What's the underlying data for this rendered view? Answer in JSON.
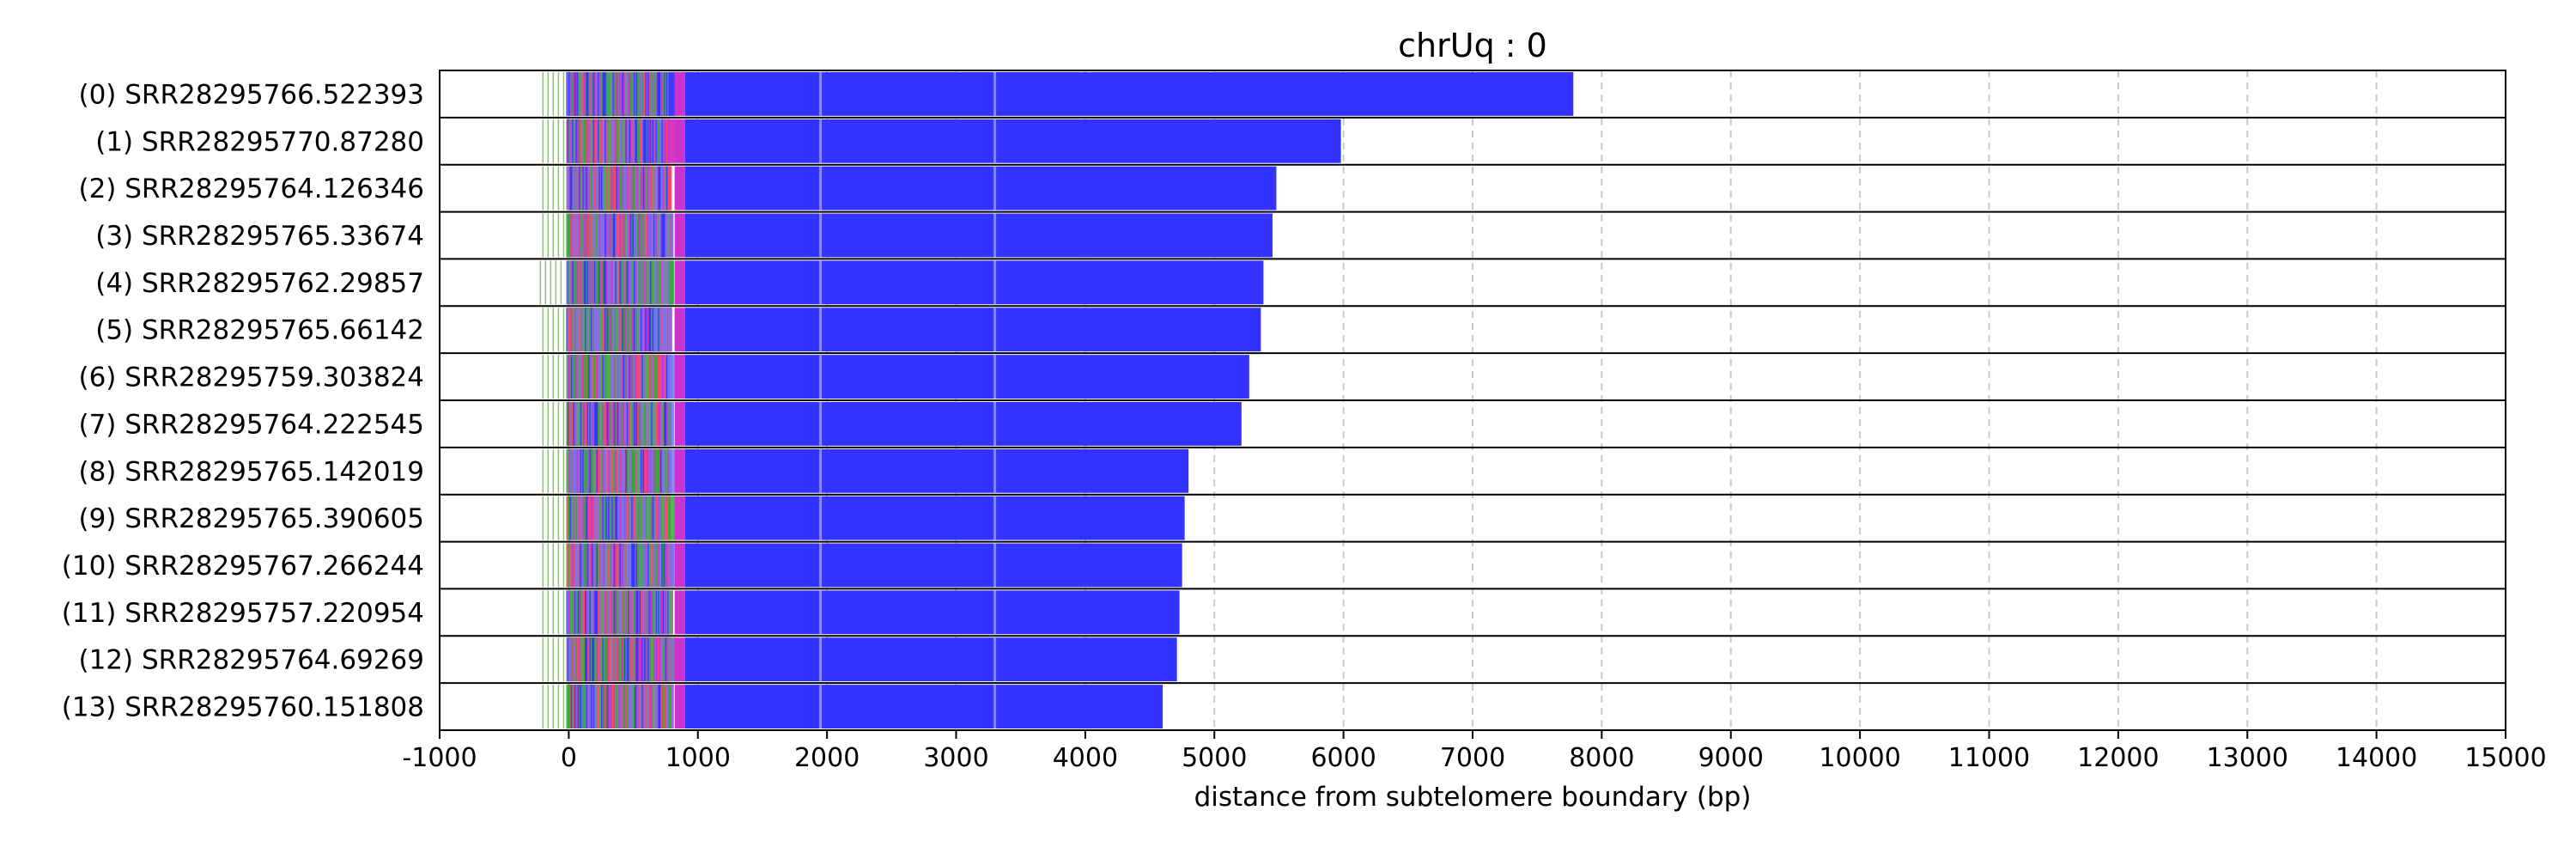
{
  "chart_data": {
    "type": "bar",
    "orientation": "horizontal",
    "title": "chrUq : 0",
    "xlabel": "distance from subtelomere boundary (bp)",
    "ylabel": "",
    "xlim": [
      -1000,
      15000
    ],
    "xticks": [
      -1000,
      0,
      1000,
      2000,
      3000,
      4000,
      5000,
      6000,
      7000,
      8000,
      9000,
      10000,
      11000,
      12000,
      13000,
      14000,
      15000
    ],
    "grid": "vertical dashed",
    "colors": {
      "telomere": "#3333ff",
      "variant_repeat": "#cc33cc",
      "green_motif": "#33aa33",
      "pale_green": "#8fbf7f",
      "purple_motif": "#9966cc",
      "red_motif": "#ff4466",
      "grid": "#c8c8c8",
      "frame": "#000000"
    },
    "reads": [
      {
        "label": "(0) SRR28295766.522393",
        "start": -200,
        "telomere_start": 900,
        "end": 7780
      },
      {
        "label": "(1) SRR28295770.87280",
        "start": -200,
        "telomere_start": 900,
        "end": 5980
      },
      {
        "label": "(2) SRR28295764.126346",
        "start": -200,
        "telomere_start": 900,
        "end": 5480
      },
      {
        "label": "(3) SRR28295765.33674",
        "start": -200,
        "telomere_start": 900,
        "end": 5450
      },
      {
        "label": "(4) SRR28295762.29857",
        "start": -220,
        "telomere_start": 900,
        "end": 5380
      },
      {
        "label": "(5) SRR28295765.66142",
        "start": -200,
        "telomere_start": 900,
        "end": 5360
      },
      {
        "label": "(6) SRR28295759.303824",
        "start": -200,
        "telomere_start": 900,
        "end": 5270
      },
      {
        "label": "(7) SRR28295764.222545",
        "start": -200,
        "telomere_start": 900,
        "end": 5210
      },
      {
        "label": "(8) SRR28295765.142019",
        "start": -200,
        "telomere_start": 900,
        "end": 4800
      },
      {
        "label": "(9) SRR28295765.390605",
        "start": -200,
        "telomere_start": 900,
        "end": 4770
      },
      {
        "label": "(10) SRR28295767.266244",
        "start": -200,
        "telomere_start": 900,
        "end": 4750
      },
      {
        "label": "(11) SRR28295757.220954",
        "start": -200,
        "telomere_start": 900,
        "end": 4730
      },
      {
        "label": "(12) SRR28295764.69269",
        "start": -200,
        "telomere_start": 900,
        "end": 4710
      },
      {
        "label": "(13) SRR28295760.151808",
        "start": -200,
        "telomere_start": 900,
        "end": 4600
      }
    ]
  }
}
